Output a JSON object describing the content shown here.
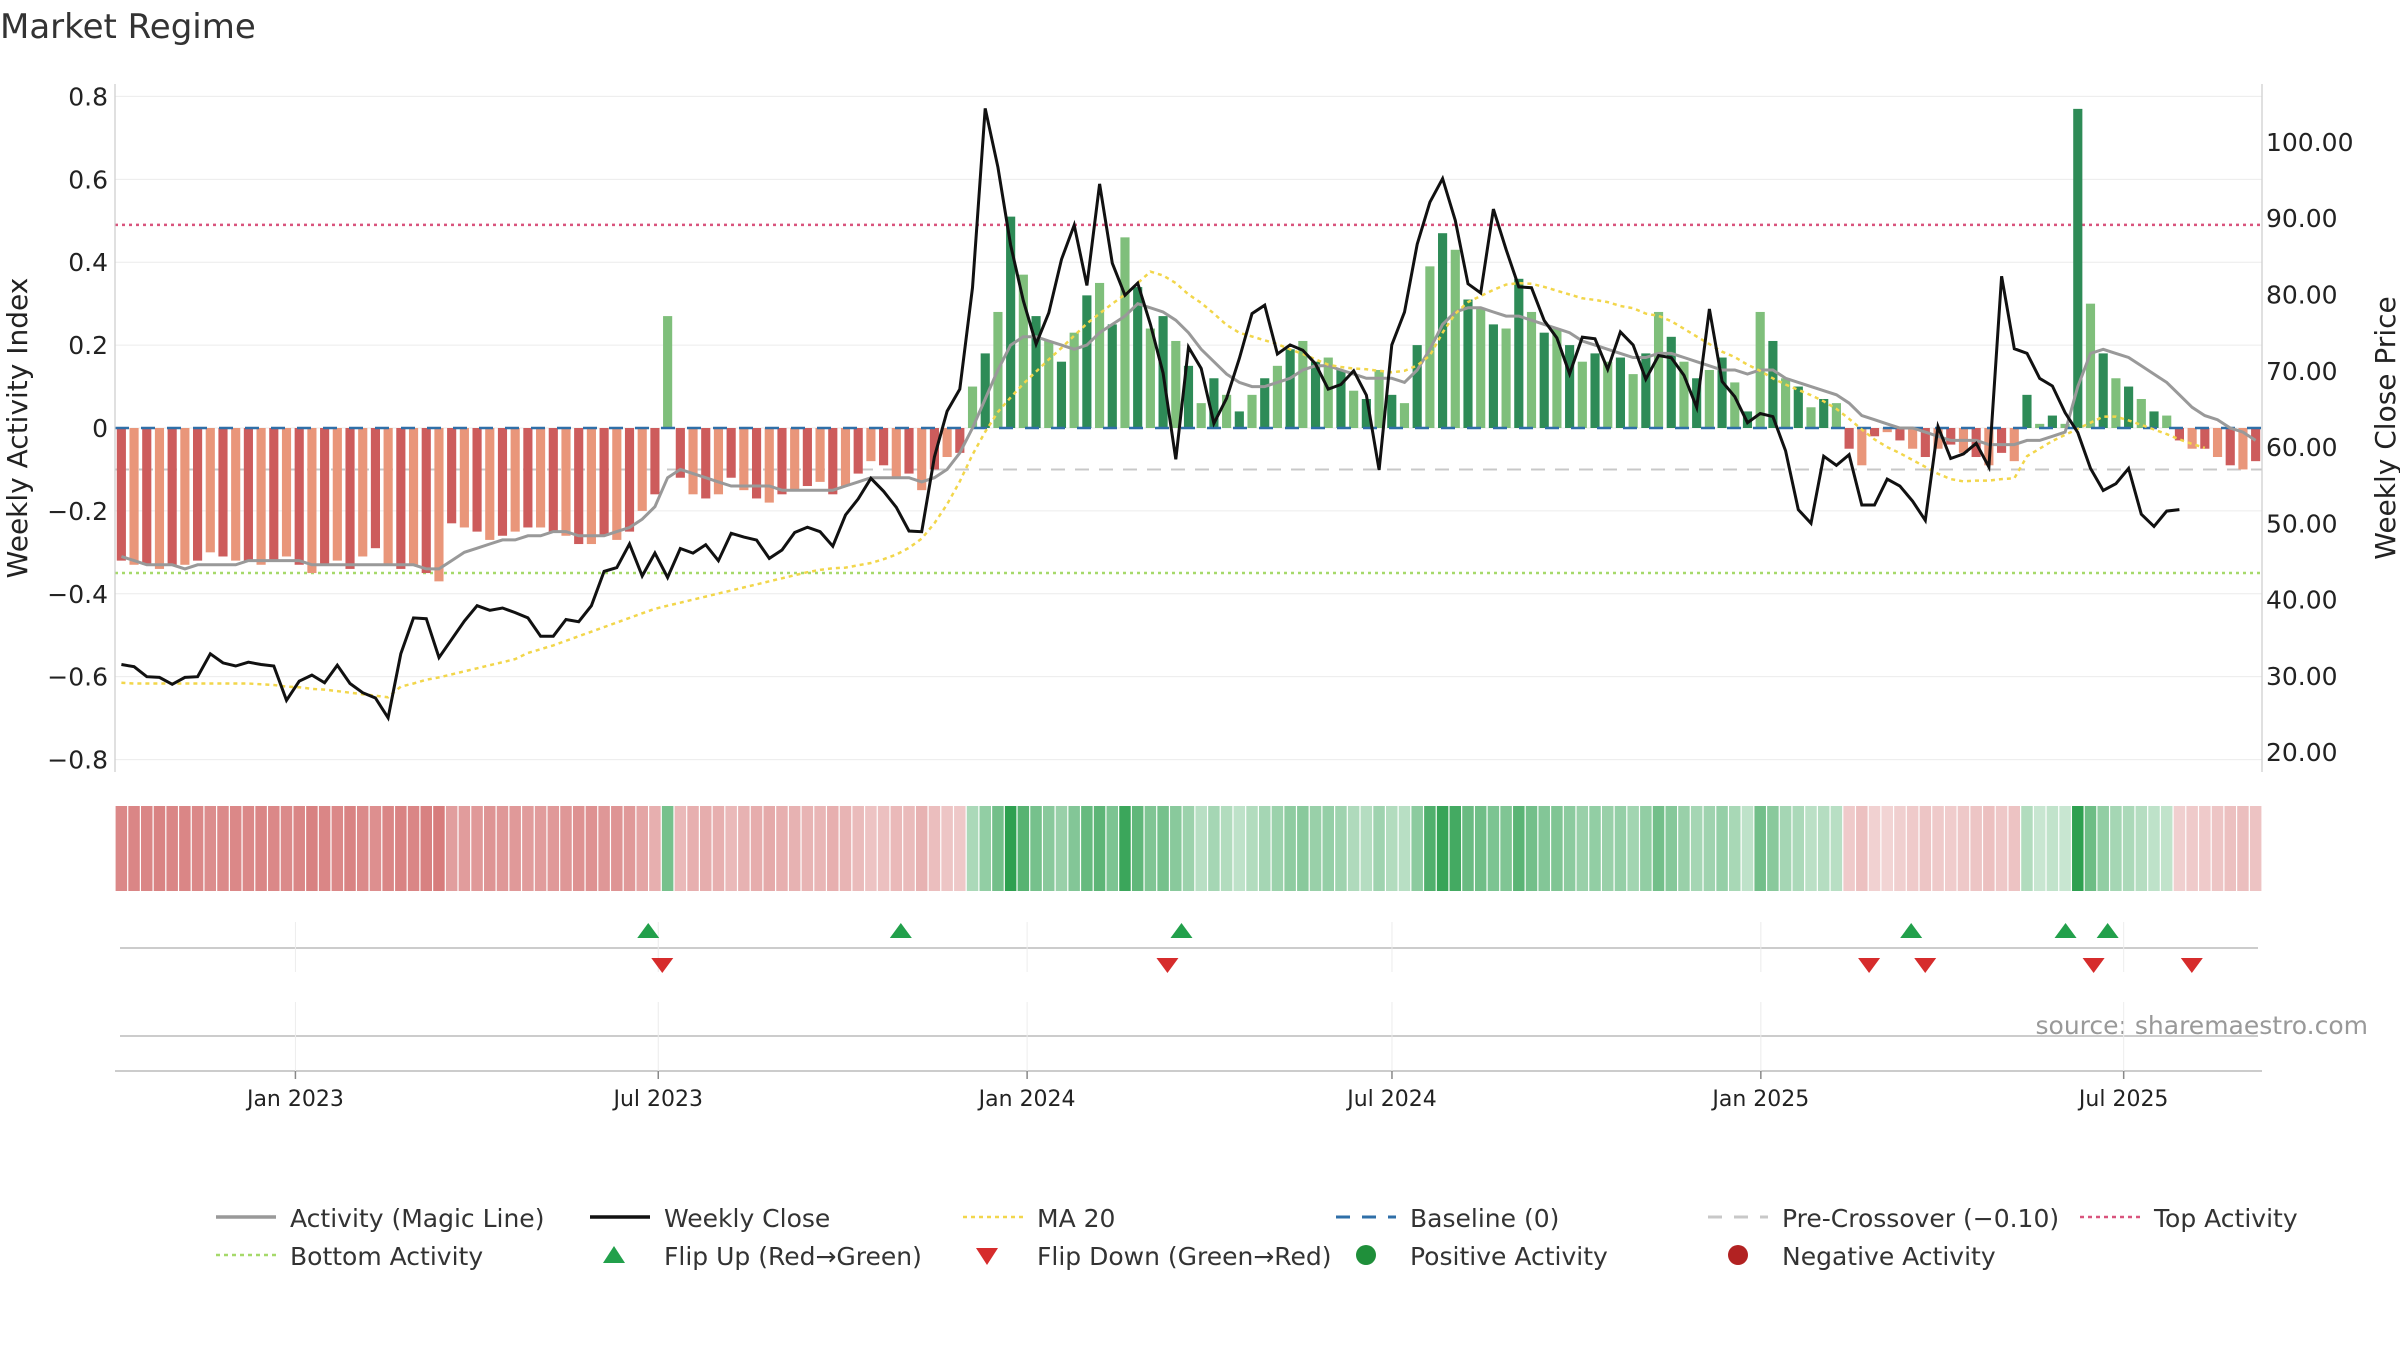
{
  "title": "Market Regime",
  "source": "source: sharemaestro.com",
  "chart_data": {
    "type": "bar",
    "title": "Market Regime",
    "left_axis": {
      "label": "Weekly Activity Index",
      "ylim": [
        -0.83,
        0.83
      ],
      "ticks": [
        0.8,
        0.6,
        0.4,
        0.2,
        0,
        -0.2,
        -0.4,
        -0.6,
        -0.8
      ],
      "tick_labels": [
        "0.8",
        "0.6",
        "0.4",
        "0.2",
        "0",
        "−0.2",
        "−0.4",
        "−0.6",
        "−0.8"
      ]
    },
    "right_axis": {
      "label": "Weekly Close Price",
      "ylim": [
        17.4,
        107.6
      ],
      "ticks": [
        100,
        90,
        80,
        70,
        60,
        50,
        40,
        30,
        20
      ],
      "tick_labels": [
        "100.00",
        "90.00",
        "80.00",
        "70.00",
        "60.00",
        "50.00",
        "40.00",
        "30.00",
        "20.00"
      ]
    },
    "x_axis": {
      "start": "2022-10-03",
      "end": "2025-09-08",
      "ticks": [
        "2023-01-01",
        "2023-07-01",
        "2024-01-01",
        "2024-07-01",
        "2025-01-01",
        "2025-07-01"
      ],
      "tick_labels": [
        "Jan 2023",
        "Jul 2023",
        "Jan 2024",
        "Jul 2024",
        "Jan 2025",
        "Jul 2025"
      ]
    },
    "reference_lines": {
      "top_activity": 0.49,
      "baseline": 0,
      "pre_crossover": -0.1,
      "bottom_activity": -0.35
    },
    "activity_bars": [
      -0.32,
      -0.33,
      -0.33,
      -0.34,
      -0.33,
      -0.33,
      -0.32,
      -0.3,
      -0.31,
      -0.32,
      -0.32,
      -0.33,
      -0.32,
      -0.31,
      -0.33,
      -0.35,
      -0.33,
      -0.32,
      -0.34,
      -0.31,
      -0.29,
      -0.33,
      -0.34,
      -0.33,
      -0.35,
      -0.37,
      -0.23,
      -0.24,
      -0.25,
      -0.27,
      -0.26,
      -0.25,
      -0.24,
      -0.24,
      -0.25,
      -0.26,
      -0.28,
      -0.28,
      -0.26,
      -0.27,
      -0.25,
      -0.2,
      -0.16,
      0.27,
      -0.12,
      -0.16,
      -0.17,
      -0.16,
      -0.12,
      -0.15,
      -0.17,
      -0.18,
      -0.16,
      -0.15,
      -0.14,
      -0.13,
      -0.16,
      -0.14,
      -0.11,
      -0.08,
      -0.09,
      -0.12,
      -0.11,
      -0.15,
      -0.1,
      -0.07,
      -0.06,
      0.1,
      0.18,
      0.28,
      0.51,
      0.37,
      0.27,
      0.21,
      0.16,
      0.23,
      0.32,
      0.35,
      0.25,
      0.46,
      0.34,
      0.24,
      0.27,
      0.21,
      0.15,
      0.06,
      0.12,
      0.08,
      0.04,
      0.08,
      0.12,
      0.15,
      0.19,
      0.21,
      0.16,
      0.17,
      0.14,
      0.09,
      0.07,
      0.14,
      0.08,
      0.06,
      0.2,
      0.39,
      0.47,
      0.43,
      0.31,
      0.29,
      0.25,
      0.24,
      0.36,
      0.28,
      0.23,
      0.24,
      0.2,
      0.16,
      0.18,
      0.16,
      0.17,
      0.13,
      0.18,
      0.28,
      0.22,
      0.16,
      0.12,
      0.14,
      0.17,
      0.11,
      0.04,
      0.28,
      0.21,
      0.12,
      0.1,
      0.05,
      0.07,
      0.06,
      -0.05,
      -0.09,
      -0.02,
      -0.01,
      -0.03,
      -0.05,
      -0.07,
      -0.05,
      -0.04,
      -0.06,
      -0.07,
      -0.09,
      -0.06,
      -0.08,
      0.08,
      0.01,
      0.03,
      0.01,
      0.77,
      0.3,
      0.18,
      0.12,
      0.1,
      0.07,
      0.04,
      0.03,
      -0.03,
      -0.05,
      -0.05,
      -0.07,
      -0.09,
      -0.1,
      -0.08
    ],
    "weekly_close": [
      31.5,
      31.2,
      29.9,
      29.8,
      28.9,
      29.8,
      29.9,
      32.9,
      31.7,
      31.3,
      31.8,
      31.5,
      31.3,
      26.8,
      29.3,
      30.1,
      29.1,
      31.4,
      29.0,
      27.8,
      27.1,
      24.5,
      32.9,
      37.6,
      37.5,
      32.4,
      34.8,
      37.2,
      39.2,
      38.6,
      38.9,
      38.3,
      37.6,
      35.2,
      35.2,
      37.4,
      37.1,
      39.2,
      43.7,
      44.2,
      47.3,
      43.1,
      46.1,
      42.9,
      46.7,
      46.1,
      47.2,
      45.1,
      48.7,
      48.2,
      47.8,
      45.4,
      46.5,
      48.8,
      49.5,
      48.9,
      47.0,
      51.1,
      53.2,
      55.9,
      54.2,
      52.1,
      49.0,
      48.9,
      58.7,
      64.7,
      67.6,
      80.9,
      104.4,
      96.7,
      86.5,
      79.2,
      73.5,
      77.6,
      84.6,
      89.1,
      81.2,
      94.5,
      84.1,
      79.9,
      81.5,
      76.1,
      69.7,
      58.4,
      73.1,
      70.3,
      63.1,
      66.4,
      71.6,
      77.5,
      78.6,
      72.2,
      73.4,
      72.7,
      70.9,
      67.6,
      68.2,
      70.0,
      66.8,
      57.0,
      73.4,
      77.7,
      86.6,
      92.1,
      95.2,
      89.7,
      81.4,
      80.2,
      91.2,
      85.9,
      81.0,
      80.9,
      76.6,
      74.3,
      69.6,
      74.4,
      74.2,
      70.2,
      75.1,
      73.4,
      68.9,
      72.0,
      71.7,
      69.4,
      65.2,
      78.1,
      68.6,
      66.6,
      63.2,
      64.4,
      64.0,
      59.5,
      51.8,
      50.0,
      58.8,
      57.6,
      59.0,
      52.4,
      52.4,
      55.8,
      54.9,
      52.9,
      50.4,
      62.7,
      58.5,
      59.1,
      60.5,
      57.4,
      82.4,
      72.9,
      72.3,
      69.0,
      68.0,
      64.5,
      61.9,
      57.2,
      54.3,
      55.2,
      57.2,
      51.2,
      49.6,
      51.6,
      51.8
    ],
    "ma20": [
      29.1,
      29.0,
      29.0,
      29.0,
      29.0,
      29.0,
      29.0,
      29.0,
      29.0,
      29.0,
      29.0,
      28.9,
      28.8,
      28.6,
      28.5,
      28.3,
      28.2,
      28.0,
      27.8,
      27.6,
      27.4,
      27.2,
      28.6,
      29.0,
      29.5,
      29.8,
      30.2,
      30.6,
      31.0,
      31.4,
      31.8,
      32.2,
      33.0,
      33.5,
      34.0,
      34.6,
      35.2,
      35.8,
      36.4,
      37.0,
      37.6,
      38.2,
      38.8,
      39.2,
      39.6,
      40.0,
      40.4,
      40.8,
      41.2,
      41.6,
      42.0,
      42.4,
      42.8,
      43.2,
      43.6,
      43.9,
      44.1,
      44.2,
      44.5,
      44.8,
      45.3,
      45.9,
      46.8,
      48.0,
      50.0,
      52.5,
      55.5,
      59.0,
      62.0,
      64.6,
      66.5,
      68.3,
      69.9,
      71.5,
      73.0,
      74.6,
      76.2,
      77.5,
      78.8,
      80.0,
      81.5,
      83.0,
      82.5,
      81.5,
      80.0,
      78.9,
      77.5,
      76.0,
      75.0,
      74.5,
      74.0,
      73.5,
      72.8,
      72.2,
      71.5,
      70.8,
      70.5,
      70.3,
      70.2,
      70.0,
      69.8,
      70.0,
      70.7,
      72.0,
      75.0,
      77.5,
      79.0,
      79.8,
      80.6,
      81.3,
      81.5,
      81.4,
      81.0,
      80.5,
      80.0,
      79.5,
      79.3,
      79.0,
      78.5,
      78.2,
      77.5,
      77.2,
      76.5,
      75.5,
      74.5,
      73.5,
      72.5,
      71.8,
      70.8,
      70.0,
      69.0,
      68.2,
      67.5,
      66.8,
      66.0,
      65.0,
      63.7,
      62.3,
      61.0,
      60.0,
      59.2,
      58.3,
      57.4,
      56.5,
      55.8,
      55.5,
      55.6,
      55.6,
      55.8,
      55.9,
      58.8,
      59.8,
      60.8,
      61.6,
      62.4,
      63.2,
      64.0,
      64.0,
      63.5,
      62.9,
      62.3,
      61.7,
      61.0,
      60.4,
      59.9
    ],
    "magic_line": [
      -0.31,
      -0.32,
      -0.33,
      -0.33,
      -0.33,
      -0.34,
      -0.33,
      -0.33,
      -0.33,
      -0.33,
      -0.32,
      -0.32,
      -0.32,
      -0.32,
      -0.32,
      -0.33,
      -0.33,
      -0.33,
      -0.33,
      -0.33,
      -0.33,
      -0.33,
      -0.33,
      -0.33,
      -0.34,
      -0.34,
      -0.32,
      -0.3,
      -0.29,
      -0.28,
      -0.27,
      -0.27,
      -0.26,
      -0.26,
      -0.25,
      -0.25,
      -0.26,
      -0.26,
      -0.26,
      -0.25,
      -0.24,
      -0.22,
      -0.19,
      -0.12,
      -0.1,
      -0.11,
      -0.12,
      -0.13,
      -0.14,
      -0.14,
      -0.14,
      -0.14,
      -0.15,
      -0.15,
      -0.15,
      -0.15,
      -0.15,
      -0.14,
      -0.13,
      -0.12,
      -0.12,
      -0.12,
      -0.12,
      -0.13,
      -0.12,
      -0.1,
      -0.06,
      0.0,
      0.07,
      0.14,
      0.2,
      0.22,
      0.22,
      0.21,
      0.2,
      0.19,
      0.2,
      0.23,
      0.25,
      0.27,
      0.3,
      0.29,
      0.28,
      0.26,
      0.23,
      0.19,
      0.16,
      0.13,
      0.11,
      0.1,
      0.1,
      0.11,
      0.12,
      0.14,
      0.15,
      0.15,
      0.14,
      0.13,
      0.12,
      0.12,
      0.12,
      0.11,
      0.14,
      0.19,
      0.25,
      0.28,
      0.29,
      0.29,
      0.28,
      0.27,
      0.27,
      0.26,
      0.25,
      0.24,
      0.23,
      0.21,
      0.2,
      0.19,
      0.18,
      0.17,
      0.17,
      0.18,
      0.18,
      0.17,
      0.16,
      0.15,
      0.14,
      0.14,
      0.13,
      0.14,
      0.14,
      0.12,
      0.11,
      0.1,
      0.09,
      0.08,
      0.06,
      0.03,
      0.02,
      0.01,
      0.0,
      0.0,
      -0.01,
      -0.02,
      -0.03,
      -0.03,
      -0.03,
      -0.04,
      -0.04,
      -0.04,
      -0.03,
      -0.03,
      -0.02,
      -0.01,
      0.1,
      0.18,
      0.19,
      0.18,
      0.17,
      0.15,
      0.13,
      0.11,
      0.08,
      0.05,
      0.03,
      0.02,
      0.0,
      -0.01,
      -0.03
    ],
    "flip_up_dates": [
      "2023-06-26",
      "2023-10-30",
      "2024-03-18",
      "2025-03-17",
      "2025-06-02",
      "2025-06-23"
    ],
    "flip_down_dates": [
      "2023-07-03",
      "2024-03-11",
      "2025-02-24",
      "2025-03-24",
      "2025-06-16",
      "2025-08-04"
    ]
  },
  "legend": [
    {
      "key": "magic",
      "label": "Activity (Magic Line)",
      "color": "#999999",
      "symbol": "line"
    },
    {
      "key": "close",
      "label": "Weekly Close",
      "color": "#111111",
      "symbol": "line"
    },
    {
      "key": "ma20",
      "label": "MA 20",
      "color": "#f2d64b",
      "symbol": "dotted"
    },
    {
      "key": "baseline",
      "label": "Baseline (0)",
      "color": "#2f6fa8",
      "symbol": "dashed"
    },
    {
      "key": "precross",
      "label": "Pre-Crossover (−0.10)",
      "color": "#c8c8c8",
      "symbol": "dashed"
    },
    {
      "key": "top",
      "label": "Top Activity",
      "color": "#d9547d",
      "symbol": "dotted"
    },
    {
      "key": "bottom",
      "label": "Bottom Activity",
      "color": "#a6d96a",
      "symbol": "dotted"
    },
    {
      "key": "flipup",
      "label": "Flip Up (Red→Green)",
      "color": "#22a04b",
      "symbol": "triangle-up"
    },
    {
      "key": "flipdown",
      "label": "Flip Down (Green→Red)",
      "color": "#d62c2c",
      "symbol": "triangle-down"
    },
    {
      "key": "pos",
      "label": "Positive Activity",
      "color": "#1f8f3a",
      "symbol": "circle"
    },
    {
      "key": "neg",
      "label": "Negative Activity",
      "color": "#b22222",
      "symbol": "circle"
    }
  ],
  "colors": {
    "pos_strong": "#2e8b57",
    "pos_light": "#7fbf7b",
    "neg_strong": "#cd5c5c",
    "neg_light": "#e9967a",
    "close": "#111111",
    "magic": "#999999",
    "ma20": "#f2d64b"
  }
}
